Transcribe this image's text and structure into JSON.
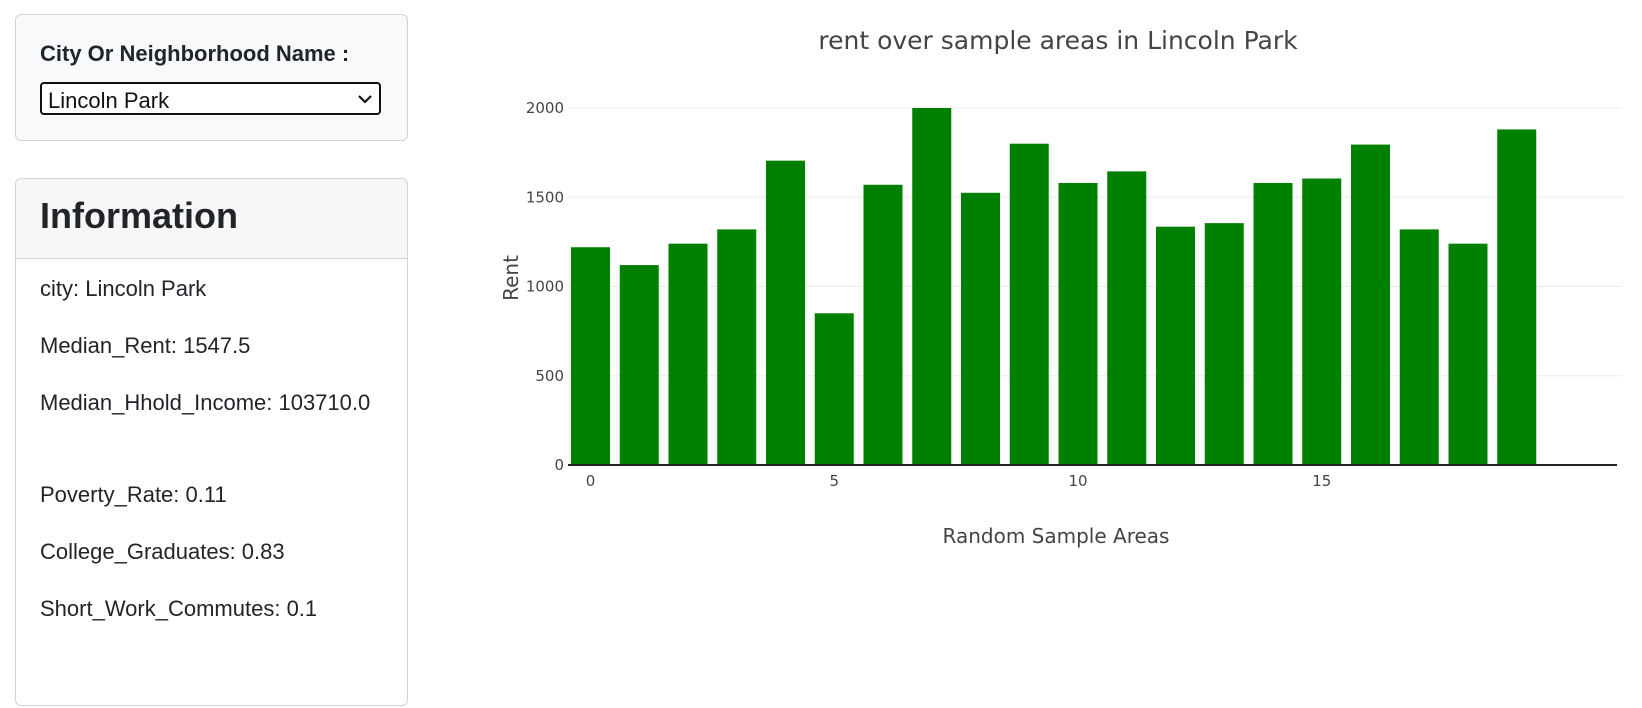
{
  "filter": {
    "label": "City Or Neighborhood Name :",
    "selected": "Lincoln Park"
  },
  "info": {
    "title": "Information",
    "items": [
      "city: Lincoln Park",
      "Median_Rent: 1547.5",
      "Median_Hhold_Income: 103710.0",
      "Poverty_Rate: 0.11",
      "College_Graduates: 0.83",
      "Short_Work_Commutes: 0.1"
    ]
  },
  "chart_data": {
    "type": "bar",
    "title": "rent over sample areas in Lincoln Park",
    "xlabel": "Random Sample Areas",
    "ylabel": "Rent",
    "x": [
      0,
      1,
      2,
      3,
      4,
      5,
      6,
      7,
      8,
      9,
      10,
      11,
      12,
      13,
      14,
      15,
      16,
      17,
      18,
      19
    ],
    "values": [
      1220,
      1120,
      1240,
      1320,
      1705,
      850,
      1570,
      2000,
      1525,
      1800,
      1580,
      1645,
      1335,
      1355,
      1580,
      1605,
      1795,
      1320,
      1240,
      1880
    ],
    "xticks": [
      0,
      5,
      10,
      15
    ],
    "yticks": [
      0,
      500,
      1000,
      1500,
      2000
    ],
    "ylim": [
      0,
      2000
    ],
    "bar_color": "#008000",
    "grid": true
  }
}
